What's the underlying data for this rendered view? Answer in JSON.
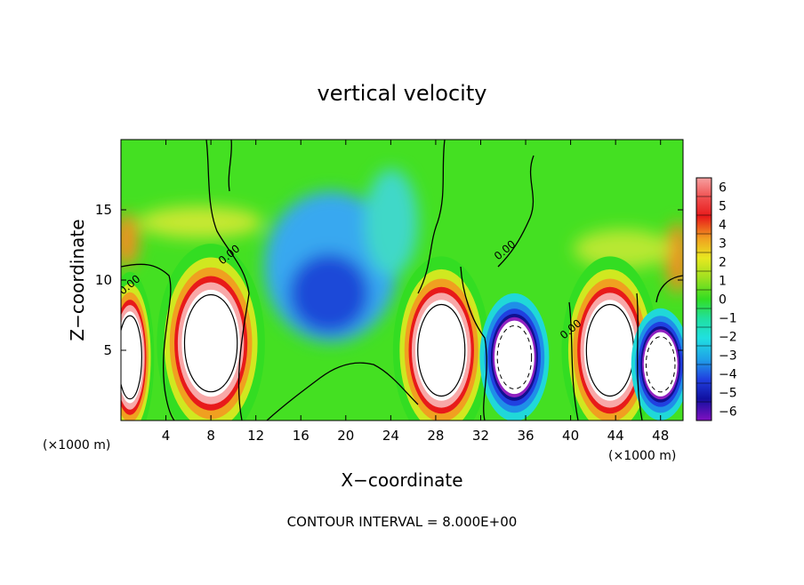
{
  "chart_data": {
    "type": "heatmap",
    "title": "vertical velocity",
    "xlabel": "X−coordinate",
    "ylabel": "Z−coordinate",
    "x_unit_left": "(×1000 m)",
    "x_unit_right": "(×1000 m)",
    "x_ticks": [
      "4",
      "8",
      "12",
      "16",
      "20",
      "24",
      "28",
      "32",
      "36",
      "40",
      "44",
      "48"
    ],
    "y_ticks": [
      "5",
      "10",
      "15"
    ],
    "xlim": [
      0,
      50
    ],
    "ylim": [
      0,
      20
    ],
    "colorbar": {
      "labels": [
        "6",
        "5",
        "4",
        "3",
        "2",
        "1",
        "0",
        "−1",
        "−2",
        "−3",
        "−4",
        "−5",
        "−6"
      ],
      "range": [
        -6,
        6
      ]
    },
    "contour_labels": [
      "0.00",
      "0.00",
      "0.00",
      "0.00"
    ],
    "footer": "CONTOUR INTERVAL = 8.000E+00",
    "updrafts": [
      {
        "x": 0.8,
        "z": 4.5
      },
      {
        "x": 8.0,
        "z": 5.5
      },
      {
        "x": 28.5,
        "z": 5.0
      },
      {
        "x": 43.5,
        "z": 5.0
      }
    ],
    "downdrafts": [
      {
        "x": 35.0,
        "z": 4.5
      },
      {
        "x": 48.0,
        "z": 4.0
      }
    ]
  }
}
